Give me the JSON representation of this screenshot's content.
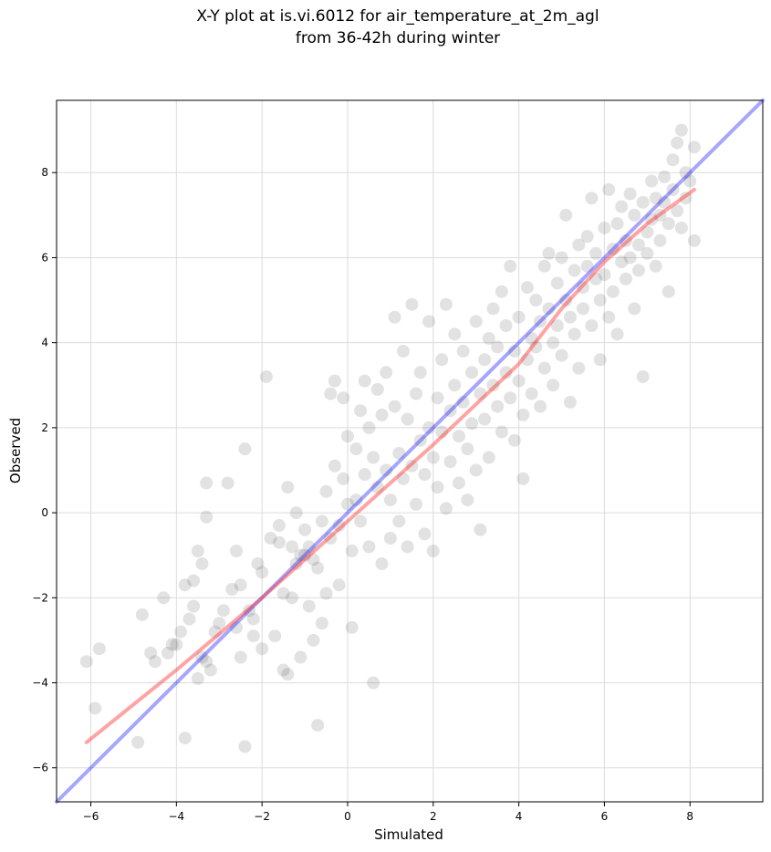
{
  "chart_data": {
    "type": "scatter",
    "title_lines": [
      "X-Y plot at is.vi.6012 for air_temperature_at_2m_agl",
      "from 36-42h during winter"
    ],
    "xlabel": "Simulated",
    "ylabel": "Observed",
    "xlim": [
      -6.8,
      9.7
    ],
    "ylim": [
      -6.8,
      9.7
    ],
    "xticks": [
      -6,
      -4,
      -2,
      0,
      2,
      4,
      6,
      8
    ],
    "yticks": [
      -6,
      -4,
      -2,
      0,
      2,
      4,
      6,
      8
    ],
    "xtick_labels": [
      "−6",
      "−4",
      "−2",
      "0",
      "2",
      "4",
      "6",
      "8"
    ],
    "ytick_labels": [
      "−6",
      "−4",
      "−2",
      "0",
      "2",
      "4",
      "6",
      "8"
    ],
    "grid": true,
    "point_color": "#333333",
    "point_opacity": 0.14,
    "identity_line": {
      "color": "#0000ff",
      "opacity": 0.35,
      "points": [
        [
          -6.8,
          -6.8
        ],
        [
          9.7,
          9.7
        ]
      ]
    },
    "fit_line": {
      "color": "#ff3333",
      "opacity": 0.45,
      "points": [
        [
          -6.1,
          -5.4
        ],
        [
          -4.0,
          -3.7
        ],
        [
          -2.0,
          -2.0
        ],
        [
          0.0,
          -0.2
        ],
        [
          2.0,
          1.6
        ],
        [
          4.0,
          3.5
        ],
        [
          5.0,
          4.8
        ],
        [
          6.0,
          5.9
        ],
        [
          7.0,
          6.8
        ],
        [
          8.1,
          7.6
        ]
      ]
    },
    "points": [
      [
        -6.1,
        -3.5
      ],
      [
        -5.9,
        -4.6
      ],
      [
        -5.8,
        -3.2
      ],
      [
        -4.9,
        -5.4
      ],
      [
        -4.8,
        -2.4
      ],
      [
        -4.6,
        -3.3
      ],
      [
        -4.5,
        -3.5
      ],
      [
        -4.3,
        -2.0
      ],
      [
        -4.2,
        -3.3
      ],
      [
        -4.1,
        -3.1
      ],
      [
        -4.0,
        -3.1
      ],
      [
        -3.9,
        -2.8
      ],
      [
        -3.8,
        -5.3
      ],
      [
        -3.8,
        -1.7
      ],
      [
        -3.7,
        -2.5
      ],
      [
        -3.6,
        -2.2
      ],
      [
        -3.6,
        -1.6
      ],
      [
        -3.5,
        -3.9
      ],
      [
        -3.5,
        -0.9
      ],
      [
        -3.4,
        -1.2
      ],
      [
        -3.4,
        -3.4
      ],
      [
        -3.3,
        -3.5
      ],
      [
        -3.3,
        -0.1
      ],
      [
        -3.3,
        0.7
      ],
      [
        -3.2,
        -3.7
      ],
      [
        -3.1,
        -2.8
      ],
      [
        -3.0,
        -2.6
      ],
      [
        -2.9,
        -2.3
      ],
      [
        -2.8,
        0.7
      ],
      [
        -2.7,
        -1.8
      ],
      [
        -2.6,
        -2.7
      ],
      [
        -2.6,
        -0.9
      ],
      [
        -2.5,
        -1.7
      ],
      [
        -2.5,
        -3.4
      ],
      [
        -2.4,
        1.5
      ],
      [
        -2.4,
        -5.5
      ],
      [
        -2.3,
        -2.3
      ],
      [
        -2.2,
        -2.9
      ],
      [
        -2.2,
        -2.5
      ],
      [
        -2.1,
        -1.2
      ],
      [
        -2.0,
        -3.2
      ],
      [
        -2.0,
        -1.4
      ],
      [
        -1.9,
        3.2
      ],
      [
        -1.8,
        -0.6
      ],
      [
        -1.7,
        -2.9
      ],
      [
        -1.6,
        -0.3
      ],
      [
        -1.6,
        -0.7
      ],
      [
        -1.5,
        -1.9
      ],
      [
        -1.5,
        -3.7
      ],
      [
        -1.4,
        -3.8
      ],
      [
        -1.4,
        0.6
      ],
      [
        -1.3,
        -2.0
      ],
      [
        -1.3,
        -0.8
      ],
      [
        -1.2,
        -1.2
      ],
      [
        -1.2,
        0.0
      ],
      [
        -1.1,
        -1.0
      ],
      [
        -1.1,
        -3.4
      ],
      [
        -1.0,
        -1.0
      ],
      [
        -1.0,
        -0.4
      ],
      [
        -0.9,
        -0.8
      ],
      [
        -0.9,
        -2.2
      ],
      [
        -0.8,
        -1.1
      ],
      [
        -0.8,
        -3.0
      ],
      [
        -0.7,
        -1.3
      ],
      [
        -0.7,
        -5.0
      ],
      [
        -0.6,
        -2.6
      ],
      [
        -0.6,
        -0.2
      ],
      [
        -0.5,
        0.5
      ],
      [
        -0.5,
        -1.9
      ],
      [
        -0.4,
        -0.6
      ],
      [
        -0.4,
        2.8
      ],
      [
        -0.3,
        1.1
      ],
      [
        -0.3,
        3.1
      ],
      [
        -0.2,
        -0.3
      ],
      [
        -0.2,
        -1.7
      ],
      [
        -0.1,
        0.8
      ],
      [
        -0.1,
        2.7
      ],
      [
        0.0,
        0.2
      ],
      [
        0.0,
        1.8
      ],
      [
        0.1,
        -0.9
      ],
      [
        0.1,
        -2.7
      ],
      [
        0.2,
        1.5
      ],
      [
        0.2,
        0.3
      ],
      [
        0.3,
        2.4
      ],
      [
        0.3,
        -0.2
      ],
      [
        0.4,
        3.1
      ],
      [
        0.4,
        0.9
      ],
      [
        0.5,
        -0.8
      ],
      [
        0.5,
        2.0
      ],
      [
        0.6,
        1.3
      ],
      [
        0.6,
        -4.0
      ],
      [
        0.7,
        2.9
      ],
      [
        0.7,
        0.6
      ],
      [
        0.8,
        -1.2
      ],
      [
        0.8,
        2.3
      ],
      [
        0.9,
        1.0
      ],
      [
        0.9,
        3.3
      ],
      [
        1.0,
        0.3
      ],
      [
        1.0,
        -0.6
      ],
      [
        1.1,
        2.5
      ],
      [
        1.1,
        4.6
      ],
      [
        1.2,
        1.4
      ],
      [
        1.2,
        -0.2
      ],
      [
        1.3,
        3.8
      ],
      [
        1.3,
        0.8
      ],
      [
        1.4,
        2.2
      ],
      [
        1.4,
        -0.8
      ],
      [
        1.5,
        4.9
      ],
      [
        1.5,
        1.1
      ],
      [
        1.6,
        2.8
      ],
      [
        1.6,
        0.2
      ],
      [
        1.7,
        1.7
      ],
      [
        1.7,
        3.3
      ],
      [
        1.8,
        0.9
      ],
      [
        1.8,
        -0.5
      ],
      [
        1.9,
        2.0
      ],
      [
        1.9,
        4.5
      ],
      [
        2.0,
        1.3
      ],
      [
        2.0,
        -0.9
      ],
      [
        2.1,
        2.7
      ],
      [
        2.1,
        0.6
      ],
      [
        2.2,
        3.6
      ],
      [
        2.2,
        1.9
      ],
      [
        2.3,
        4.9
      ],
      [
        2.3,
        0.1
      ],
      [
        2.4,
        2.4
      ],
      [
        2.4,
        1.2
      ],
      [
        2.5,
        3.0
      ],
      [
        2.5,
        4.2
      ],
      [
        2.6,
        1.8
      ],
      [
        2.6,
        0.7
      ],
      [
        2.7,
        2.6
      ],
      [
        2.7,
        3.8
      ],
      [
        2.8,
        1.5
      ],
      [
        2.8,
        0.3
      ],
      [
        2.9,
        3.3
      ],
      [
        2.9,
        2.1
      ],
      [
        3.0,
        4.5
      ],
      [
        3.0,
        1.0
      ],
      [
        3.1,
        2.8
      ],
      [
        3.1,
        -0.4
      ],
      [
        3.2,
        3.6
      ],
      [
        3.2,
        2.2
      ],
      [
        3.3,
        4.1
      ],
      [
        3.3,
        1.3
      ],
      [
        3.4,
        3.0
      ],
      [
        3.4,
        4.8
      ],
      [
        3.5,
        2.5
      ],
      [
        3.5,
        3.9
      ],
      [
        3.6,
        1.9
      ],
      [
        3.6,
        5.2
      ],
      [
        3.7,
        3.3
      ],
      [
        3.7,
        4.4
      ],
      [
        3.8,
        2.7
      ],
      [
        3.8,
        5.8
      ],
      [
        3.9,
        3.8
      ],
      [
        3.9,
        1.7
      ],
      [
        4.0,
        4.6
      ],
      [
        4.0,
        3.1
      ],
      [
        4.1,
        2.3
      ],
      [
        4.1,
        0.8
      ],
      [
        4.2,
        5.3
      ],
      [
        4.2,
        3.6
      ],
      [
        4.3,
        4.1
      ],
      [
        4.3,
        2.8
      ],
      [
        4.4,
        5.0
      ],
      [
        4.4,
        3.9
      ],
      [
        4.5,
        4.5
      ],
      [
        4.5,
        2.5
      ],
      [
        4.6,
        5.8
      ],
      [
        4.6,
        3.4
      ],
      [
        4.7,
        4.8
      ],
      [
        4.7,
        6.1
      ],
      [
        4.8,
        4.0
      ],
      [
        4.8,
        3.0
      ],
      [
        4.9,
        5.4
      ],
      [
        4.9,
        4.4
      ],
      [
        5.0,
        6.0
      ],
      [
        5.0,
        3.7
      ],
      [
        5.1,
        5.0
      ],
      [
        5.1,
        7.0
      ],
      [
        5.2,
        4.6
      ],
      [
        5.2,
        2.6
      ],
      [
        5.3,
        5.7
      ],
      [
        5.3,
        4.2
      ],
      [
        5.4,
        6.3
      ],
      [
        5.4,
        3.4
      ],
      [
        5.5,
        5.3
      ],
      [
        5.5,
        4.8
      ],
      [
        5.6,
        6.5
      ],
      [
        5.6,
        5.8
      ],
      [
        5.7,
        4.4
      ],
      [
        5.7,
        7.4
      ],
      [
        5.8,
        5.5
      ],
      [
        5.8,
        6.1
      ],
      [
        5.9,
        5.0
      ],
      [
        5.9,
        3.6
      ],
      [
        6.0,
        6.7
      ],
      [
        6.0,
        5.6
      ],
      [
        6.1,
        4.6
      ],
      [
        6.1,
        7.6
      ],
      [
        6.2,
        6.2
      ],
      [
        6.2,
        5.2
      ],
      [
        6.3,
        6.8
      ],
      [
        6.3,
        4.2
      ],
      [
        6.4,
        5.9
      ],
      [
        6.4,
        7.2
      ],
      [
        6.5,
        6.4
      ],
      [
        6.5,
        5.5
      ],
      [
        6.6,
        7.5
      ],
      [
        6.6,
        6.0
      ],
      [
        6.7,
        4.8
      ],
      [
        6.7,
        7.0
      ],
      [
        6.8,
        6.3
      ],
      [
        6.8,
        5.7
      ],
      [
        6.9,
        3.2
      ],
      [
        6.9,
        7.3
      ],
      [
        7.0,
        6.6
      ],
      [
        7.0,
        6.1
      ],
      [
        7.1,
        7.8
      ],
      [
        7.1,
        6.9
      ],
      [
        7.2,
        5.8
      ],
      [
        7.2,
        7.4
      ],
      [
        7.3,
        7.0
      ],
      [
        7.3,
        6.4
      ],
      [
        7.4,
        7.9
      ],
      [
        7.4,
        7.3
      ],
      [
        7.5,
        6.8
      ],
      [
        7.5,
        5.2
      ],
      [
        7.6,
        8.3
      ],
      [
        7.6,
        7.6
      ],
      [
        7.7,
        8.7
      ],
      [
        7.7,
        7.1
      ],
      [
        7.8,
        9.0
      ],
      [
        7.8,
        6.7
      ],
      [
        7.9,
        8.0
      ],
      [
        7.9,
        7.4
      ],
      [
        8.0,
        7.8
      ],
      [
        8.1,
        8.6
      ],
      [
        8.1,
        6.4
      ]
    ]
  }
}
